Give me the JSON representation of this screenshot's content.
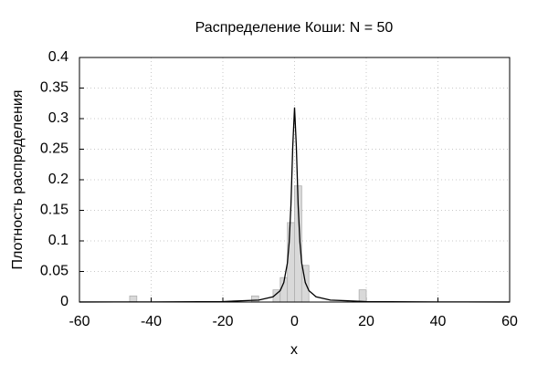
{
  "chart_data": {
    "type": "histogram",
    "title": "Распределение Коши: N = 50",
    "xlabel": "x",
    "ylabel": "Плотность распределения",
    "bins": [
      -46,
      -44,
      -42,
      -40,
      -38,
      -36,
      -34,
      -32,
      -30,
      -28,
      -26,
      -24,
      -22,
      -20,
      -18,
      -16,
      -14,
      -12,
      -10,
      -8,
      -6,
      -4,
      -2,
      0,
      2,
      4,
      6,
      8,
      10,
      12,
      14,
      16,
      18,
      20
    ],
    "values": [
      0.01,
      0,
      0,
      0,
      0,
      0,
      0,
      0,
      0,
      0,
      0,
      0,
      0,
      0,
      0,
      0,
      0,
      0.01,
      0,
      0,
      0.02,
      0.04,
      0.13,
      0.19,
      0.06,
      0,
      0,
      0,
      0,
      0,
      0,
      0,
      0.02
    ],
    "color": "#d9d9d9",
    "curve": {
      "color": "#000000",
      "x": [
        -60,
        -40,
        -20,
        -10,
        -6,
        -4,
        -3,
        -2,
        -1.5,
        -1,
        -0.5,
        0,
        0.5,
        1,
        1.5,
        2,
        3,
        4,
        6,
        10,
        20,
        40,
        60
      ],
      "values": [
        0.0001,
        0.0002,
        0.0008,
        0.0032,
        0.0086,
        0.0187,
        0.0318,
        0.0637,
        0.0979,
        0.1592,
        0.2546,
        0.3183,
        0.2546,
        0.1592,
        0.0979,
        0.0637,
        0.0318,
        0.0187,
        0.0086,
        0.0032,
        0.0008,
        0.0002,
        0.0001
      ]
    },
    "xlim": [
      -60,
      60
    ],
    "xticks": [
      -60,
      -40,
      -20,
      0,
      20,
      40,
      60
    ],
    "ylim": [
      0,
      0.4
    ],
    "yticks": [
      0,
      0.05,
      0.1,
      0.15,
      0.2,
      0.25,
      0.3,
      0.35,
      0.4
    ],
    "grid": true
  }
}
